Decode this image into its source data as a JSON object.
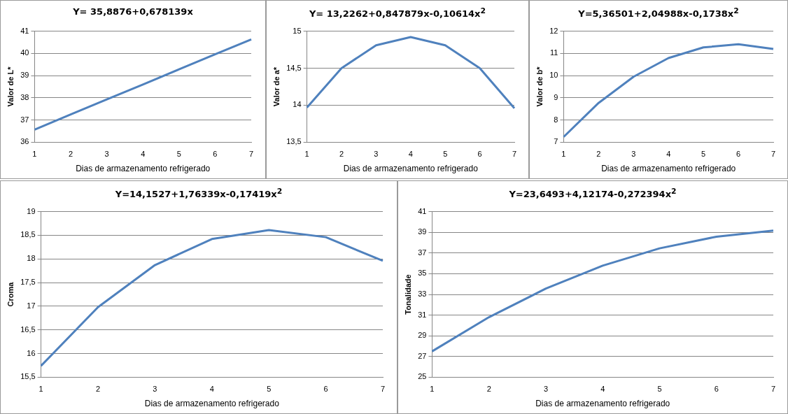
{
  "chart_data": [
    {
      "type": "line",
      "title": "Y= 35,8876+0,678139x",
      "xlabel": "Dias de armazenamento refrigerado",
      "ylabel": "Valor de L*",
      "categories": [
        "1",
        "2",
        "3",
        "4",
        "5",
        "6",
        "7"
      ],
      "series": [
        {
          "color": "#4f81bd",
          "values": [
            36.57,
            37.25,
            37.93,
            38.6,
            39.28,
            39.96,
            40.63
          ]
        }
      ],
      "ylim": [
        36,
        41
      ],
      "yticks": [
        36,
        37,
        38,
        39,
        40,
        41
      ],
      "grid": "y",
      "marker": "none"
    },
    {
      "type": "line",
      "title": "Y= 13,2262+0,847879x-0,10614x$^{2}$",
      "xlabel": "Dias de armazenamento refrigerado",
      "ylabel": "Valor de a*",
      "categories": [
        "1",
        "2",
        "3",
        "4",
        "5",
        "6",
        "7"
      ],
      "series": [
        {
          "color": "#4f81bd",
          "values": [
            13.97,
            14.5,
            14.81,
            14.92,
            14.81,
            14.5,
            13.96
          ]
        }
      ],
      "ylim": [
        13.5,
        15
      ],
      "yticks": [
        {
          "value": 13.5,
          "label": "13,5"
        },
        14,
        {
          "value": 14.5,
          "label": "14,5"
        },
        15
      ],
      "grid": "y",
      "marker": "none"
    },
    {
      "type": "line",
      "title": "Y=5,36501+2,04988x-0,1738x$^{2}$",
      "xlabel": "Dias de armazenamento refrigerado",
      "ylabel": "Valor de b*",
      "categories": [
        "1",
        "2",
        "3",
        "4",
        "5",
        "6",
        "7"
      ],
      "series": [
        {
          "color": "#4f81bd",
          "values": [
            7.24,
            8.77,
            9.95,
            10.79,
            11.27,
            11.41,
            11.2
          ]
        }
      ],
      "ylim": [
        7,
        12
      ],
      "yticks": [
        7,
        8,
        9,
        10,
        11,
        12
      ],
      "grid": "y",
      "marker": "none"
    },
    {
      "type": "line",
      "title": "Y=14,1527+1,76339x-0,17419x$^{2}$",
      "xlabel": "Dias de armazenamento refrigerado",
      "ylabel": "Croma",
      "categories": [
        "1",
        "2",
        "3",
        "4",
        "5",
        "6",
        "7"
      ],
      "series": [
        {
          "color": "#4f81bd",
          "values": [
            15.74,
            16.98,
            17.87,
            18.42,
            18.61,
            18.46,
            17.96
          ]
        }
      ],
      "ylim": [
        15.5,
        19
      ],
      "yticks": [
        {
          "value": 15.5,
          "label": "15,5"
        },
        16,
        {
          "value": 16.5,
          "label": "16,5"
        },
        17,
        {
          "value": 17.5,
          "label": "17,5"
        },
        18,
        {
          "value": 18.5,
          "label": "18,5"
        },
        19
      ],
      "grid": "y",
      "marker": "none"
    },
    {
      "type": "line",
      "title": "Y=23,6493+4,12174-0,272394x$^{2}$",
      "xlabel": "Dias de armazenamento refrigerado",
      "ylabel": "Tonalidade",
      "categories": [
        "1",
        "2",
        "3",
        "4",
        "5",
        "6",
        "7"
      ],
      "series": [
        {
          "color": "#4f81bd",
          "values": [
            27.5,
            30.8,
            33.56,
            35.78,
            37.45,
            38.58,
            39.17
          ]
        }
      ],
      "ylim": [
        25,
        41
      ],
      "yticks": [
        25,
        27,
        29,
        31,
        33,
        35,
        37,
        39,
        41
      ],
      "grid": "y",
      "marker": "none"
    }
  ]
}
